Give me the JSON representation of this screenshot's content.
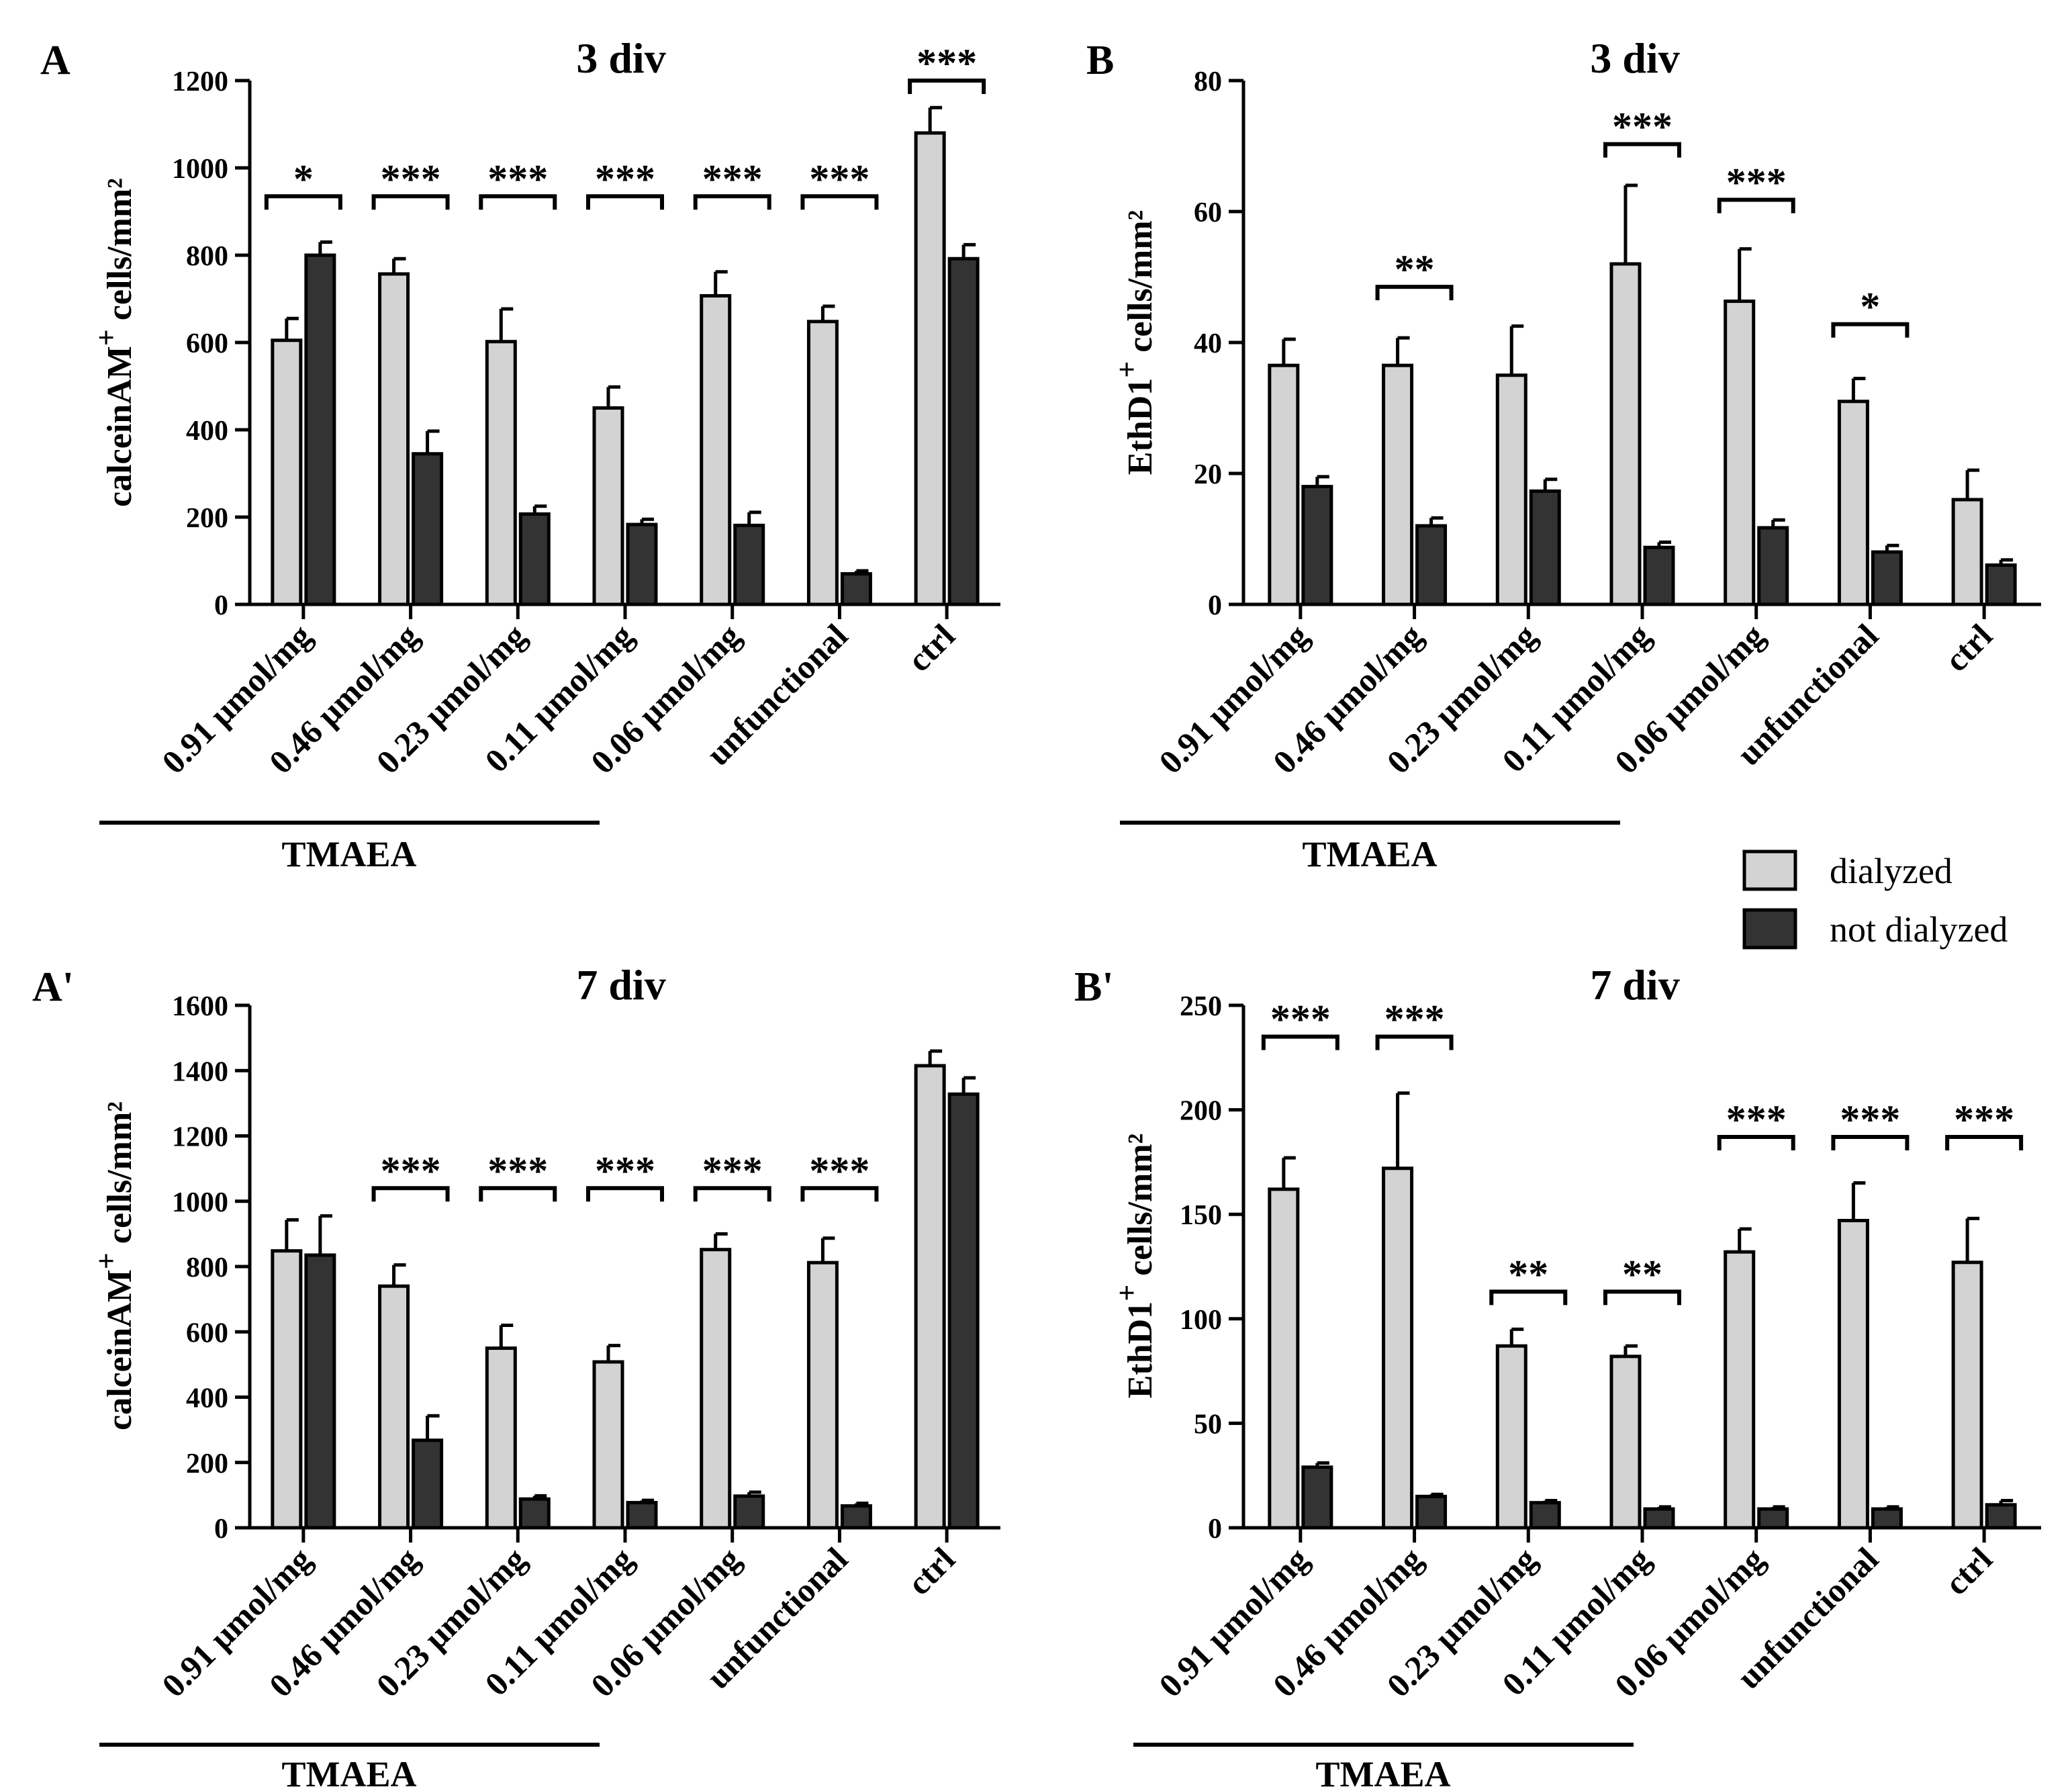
{
  "legend": [
    {
      "name": "dialyzed",
      "color": "#d3d3d3"
    },
    {
      "name": "not dialyzed",
      "color": "#333333"
    }
  ],
  "chart_data": [
    {
      "panel": "A",
      "type": "bar",
      "title": "3 div",
      "ylabel": "calceinAM",
      "ylabel_sup": "+",
      "ylabel_unit": " cells/mm²",
      "ylim": [
        0,
        1200
      ],
      "yticks": [
        "0",
        "200",
        "400",
        "600",
        "800",
        "1000",
        "1200"
      ],
      "categories": [
        "0.91 µmol/mg",
        "0.46 µmol/mg",
        "0.23 µmol/mg",
        "0.11 µmol/mg",
        "0.06 µmol/mg",
        "unfunctional",
        "ctrl"
      ],
      "group_label": "TMAEA",
      "series": [
        {
          "name": "dialyzed",
          "values": [
            605,
            757,
            602,
            450,
            707,
            648,
            1080
          ],
          "errors": [
            50,
            35,
            75,
            48,
            55,
            35,
            58
          ]
        },
        {
          "name": "not dialyzed",
          "values": [
            800,
            345,
            207,
            183,
            181,
            70,
            792
          ],
          "errors": [
            30,
            52,
            18,
            12,
            30,
            7,
            32
          ]
        }
      ],
      "significance": [
        {
          "category": 0,
          "label": "*",
          "y": 935
        },
        {
          "category": 1,
          "label": "***",
          "y": 935
        },
        {
          "category": 2,
          "label": "***",
          "y": 935
        },
        {
          "category": 3,
          "label": "***",
          "y": 935
        },
        {
          "category": 4,
          "label": "***",
          "y": 935
        },
        {
          "category": 5,
          "label": "***",
          "y": 935
        },
        {
          "category": 6,
          "label": "***",
          "y": 1200
        }
      ]
    },
    {
      "panel": "B",
      "type": "bar",
      "title": "3 div",
      "ylabel": "EthD1",
      "ylabel_sup": "+",
      "ylabel_unit": " cells/mm²",
      "ylim": [
        0,
        80
      ],
      "yticks": [
        "0",
        "20",
        "40",
        "60",
        "80"
      ],
      "categories": [
        "0.91 µmol/mg",
        "0.46 µmol/mg",
        "0.23 µmol/mg",
        "0.11 µmol/mg",
        "0.06 µmol/mg",
        "unfunctional",
        "ctrl"
      ],
      "group_label": "TMAEA",
      "series": [
        {
          "name": "dialyzed",
          "values": [
            36.5,
            36.5,
            35,
            52,
            46.3,
            31,
            16
          ],
          "errors": [
            4,
            4.2,
            7.5,
            12,
            8,
            3.5,
            4.5
          ]
        },
        {
          "name": "not dialyzed",
          "values": [
            18,
            12,
            17.3,
            8.7,
            11.7,
            8,
            6
          ],
          "errors": [
            1.5,
            1.2,
            1.8,
            0.8,
            1.2,
            1,
            0.8
          ]
        }
      ],
      "significance": [
        {
          "category": 1,
          "label": "**",
          "y": 48.5
        },
        {
          "category": 3,
          "label": "***",
          "y": 70.3
        },
        {
          "category": 4,
          "label": "***",
          "y": 61.8
        },
        {
          "category": 5,
          "label": "*",
          "y": 42.8
        }
      ]
    },
    {
      "panel": "A'",
      "type": "bar",
      "title": "7 div",
      "ylabel": "calceinAM",
      "ylabel_sup": "+",
      "ylabel_unit": " cells/mm²",
      "ylim": [
        0,
        1600
      ],
      "yticks": [
        "0",
        "200",
        "400",
        "600",
        "800",
        "1000",
        "1200",
        "1400",
        "1600"
      ],
      "categories": [
        "0.91 µmol/mg",
        "0.46 µmol/mg",
        "0.23 µmol/mg",
        "0.11 µmol/mg",
        "0.06 µmol/mg",
        "unfunctional",
        "ctrl"
      ],
      "group_label": "TMAEA",
      "series": [
        {
          "name": "dialyzed",
          "values": [
            848,
            740,
            550,
            508,
            852,
            812,
            1415
          ],
          "errors": [
            95,
            65,
            70,
            50,
            48,
            75,
            45
          ]
        },
        {
          "name": "not dialyzed",
          "values": [
            835,
            268,
            88,
            77,
            97,
            67,
            1328
          ],
          "errors": [
            120,
            75,
            10,
            7,
            12,
            8,
            50
          ]
        }
      ],
      "significance": [
        {
          "category": 1,
          "label": "***",
          "y": 1040
        },
        {
          "category": 2,
          "label": "***",
          "y": 1040
        },
        {
          "category": 3,
          "label": "***",
          "y": 1040
        },
        {
          "category": 4,
          "label": "***",
          "y": 1040
        },
        {
          "category": 5,
          "label": "***",
          "y": 1040
        }
      ]
    },
    {
      "panel": "B'",
      "type": "bar",
      "title": "7 div",
      "ylabel": "EthD1",
      "ylabel_sup": "+",
      "ylabel_unit": " cells/mm²",
      "ylim": [
        0,
        250
      ],
      "yticks": [
        "0",
        "50",
        "100",
        "150",
        "200",
        "250"
      ],
      "categories": [
        "0.91 µmol/mg",
        "0.46 µmol/mg",
        "0.23 µmol/mg",
        "0.11 µmol/mg",
        "0.06 µmol/mg",
        "unfunctional",
        "ctrl"
      ],
      "group_label": "TMAEA",
      "series": [
        {
          "name": "dialyzed",
          "values": [
            162,
            172,
            87,
            82,
            132,
            147,
            127
          ],
          "errors": [
            15,
            36,
            8,
            5,
            11,
            18,
            21
          ]
        },
        {
          "name": "not dialyzed",
          "values": [
            29,
            15,
            12,
            9,
            9,
            9,
            11
          ],
          "errors": [
            2,
            1,
            1,
            1,
            1,
            1,
            2
          ]
        }
      ],
      "significance": [
        {
          "category": 0,
          "label": "***",
          "y": 235
        },
        {
          "category": 1,
          "label": "***",
          "y": 235
        },
        {
          "category": 2,
          "label": "**",
          "y": 113
        },
        {
          "category": 3,
          "label": "**",
          "y": 113
        },
        {
          "category": 4,
          "label": "***",
          "y": 187
        },
        {
          "category": 5,
          "label": "***",
          "y": 187
        },
        {
          "category": 6,
          "label": "***",
          "y": 187
        }
      ]
    }
  ]
}
